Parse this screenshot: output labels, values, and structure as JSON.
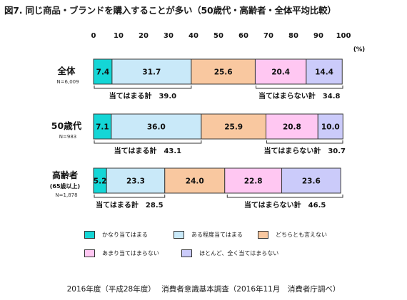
{
  "title": "図7. 同じ商品・ブランドを購入することが多い（50歳代・高齢者・全体平均比較）",
  "source": "2016年度（平成28年度）　 消費者意識基本調査（2016年11月　消費者庁調べ）",
  "chart_data": {
    "type": "stacked-bar-horizontal",
    "orientation": "horizontal",
    "unit": "(%)",
    "xlim": [
      0,
      100
    ],
    "xticks": [
      "0",
      "10",
      "20",
      "30",
      "40",
      "50",
      "60",
      "70",
      "80",
      "90",
      "100"
    ],
    "grid": false,
    "legend_position": "bottom",
    "categories": [
      {
        "label": "全体",
        "sub": "",
        "n": "N=6,009"
      },
      {
        "label": "50歳代",
        "sub": "",
        "n": "N=983"
      },
      {
        "label": "高齢者",
        "sub": "(65歳以上)",
        "n": "N=1,878"
      }
    ],
    "series": [
      {
        "name": "かなり当てはまる",
        "color": "#14d6d6",
        "values": [
          7.4,
          7.1,
          5.2
        ],
        "labels": [
          "7.4",
          "7.1",
          "5.2"
        ]
      },
      {
        "name": "ある程度当てはまる",
        "color": "#c9e9f9",
        "values": [
          31.7,
          36.0,
          23.3
        ],
        "labels": [
          "31.7",
          "36.0",
          "23.3"
        ]
      },
      {
        "name": "どちらとも言えない",
        "color": "#f9c8a0",
        "values": [
          25.6,
          25.9,
          24.0
        ],
        "labels": [
          "25.6",
          "25.9",
          "24.0"
        ]
      },
      {
        "name": "あまり当てはまらない",
        "color": "#ffc7f2",
        "values": [
          20.4,
          20.8,
          22.8
        ],
        "labels": [
          "20.4",
          "20.8",
          "22.8"
        ]
      },
      {
        "name": "ほとんど、全く当てはまらない",
        "color": "#cbcbfa",
        "values": [
          14.4,
          10.0,
          23.6
        ],
        "labels": [
          "14.4",
          "10.0",
          "23.6"
        ]
      }
    ],
    "annotations": [
      {
        "bar": 0,
        "text": "当てはまる計　39.0",
        "from": 0,
        "to": 39.1
      },
      {
        "bar": 0,
        "text": "当てはまらない計　34.8",
        "from": 65.0,
        "to": 100
      },
      {
        "bar": 1,
        "text": "当てはまる計　43.1",
        "from": 0,
        "to": 43.1
      },
      {
        "bar": 1,
        "text": "当てはまらない計　30.7",
        "from": 69.3,
        "to": 100
      },
      {
        "bar": 2,
        "text": "当てはまる計　28.5",
        "from": 0,
        "to": 28.5
      },
      {
        "bar": 2,
        "text": "当てはまらない計　46.5",
        "from": 53.5,
        "to": 100
      }
    ]
  }
}
